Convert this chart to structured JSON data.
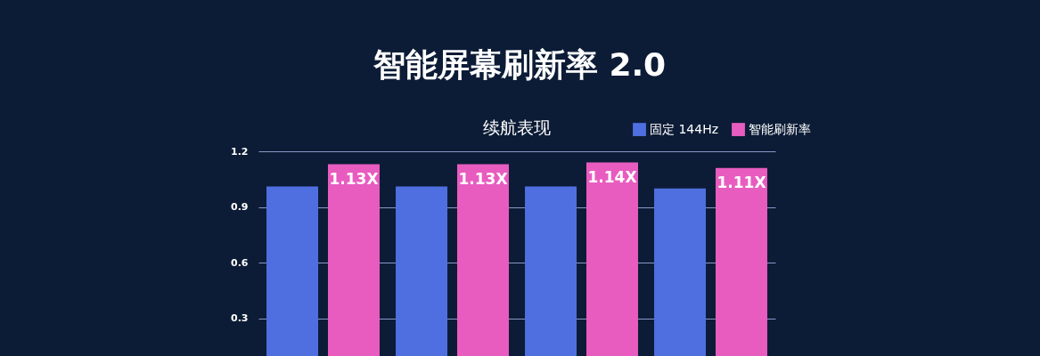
{
  "chart_data": {
    "type": "bar",
    "title": "智能屏幕刷新率 2.0",
    "subtitle": "续航表现",
    "categories": [
      null,
      null,
      null,
      null
    ],
    "series": [
      {
        "name": "固定 144Hz",
        "color": "#4f6fe0",
        "values": [
          1.01,
          1.01,
          1.01,
          1.0
        ]
      },
      {
        "name": "智能刷新率",
        "color": "#e85cc0",
        "values": [
          1.13,
          1.13,
          1.14,
          1.11
        ],
        "value_labels": [
          "1.13X",
          "1.13X",
          "1.14X",
          "1.11X"
        ]
      }
    ],
    "ylim": [
      0,
      1.2
    ],
    "yticks": [
      0.3,
      0.6,
      0.9,
      1.2
    ],
    "grid": "y",
    "legend": "top right",
    "tick_labels": "y"
  }
}
